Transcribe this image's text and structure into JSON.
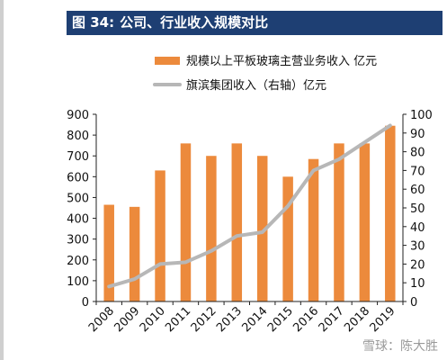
{
  "title": {
    "figure_label": "图 34:",
    "text": "公司、行业收入规模对比"
  },
  "watermark": "雪球：陈大胜",
  "colors": {
    "bar": "#ec8a3c",
    "line": "#b7b7b7",
    "title_bg": "#1e3f73",
    "axis": "#222222"
  },
  "chart_data": {
    "type": "bar",
    "categories": [
      "2008",
      "2009",
      "2010",
      "2011",
      "2012",
      "2013",
      "2014",
      "2015",
      "2016",
      "2017",
      "2018",
      "2019"
    ],
    "series": [
      {
        "name": "规模以上平板玻璃主营业务收入 亿元",
        "type": "bar",
        "axis": "left",
        "values": [
          465,
          455,
          630,
          760,
          700,
          760,
          700,
          600,
          685,
          760,
          760,
          845
        ]
      },
      {
        "name": "旗滨集团收入（右轴）亿元",
        "type": "line",
        "axis": "right",
        "values": [
          8,
          12,
          20,
          21,
          27,
          35,
          37,
          51,
          70,
          76,
          85,
          94
        ]
      }
    ],
    "y_left": {
      "range": [
        0,
        900
      ],
      "ticks": [
        0,
        100,
        200,
        300,
        400,
        500,
        600,
        700,
        800,
        900
      ]
    },
    "y_right": {
      "range": [
        0,
        100
      ],
      "ticks": [
        0,
        10,
        20,
        30,
        40,
        50,
        60,
        70,
        80,
        90,
        100
      ]
    },
    "legend_position": "top-right",
    "grid": false
  }
}
